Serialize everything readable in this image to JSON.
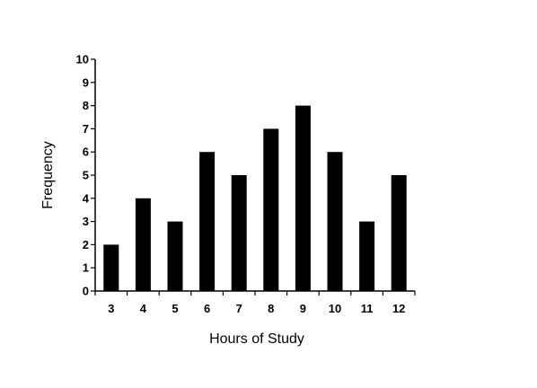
{
  "chart_data": {
    "type": "bar",
    "title": "",
    "xlabel": "Hours of Study",
    "ylabel": "Frequency",
    "categories": [
      "3",
      "4",
      "5",
      "6",
      "7",
      "8",
      "9",
      "10",
      "11",
      "12"
    ],
    "values": [
      2,
      4,
      3,
      6,
      5,
      7,
      8,
      6,
      3,
      5
    ],
    "ylim": [
      0,
      10
    ],
    "yticks": [
      "0",
      "1",
      "2",
      "3",
      "4",
      "5",
      "6",
      "7",
      "8",
      "9",
      "10"
    ],
    "bar_color": "#000000",
    "grid": false
  }
}
